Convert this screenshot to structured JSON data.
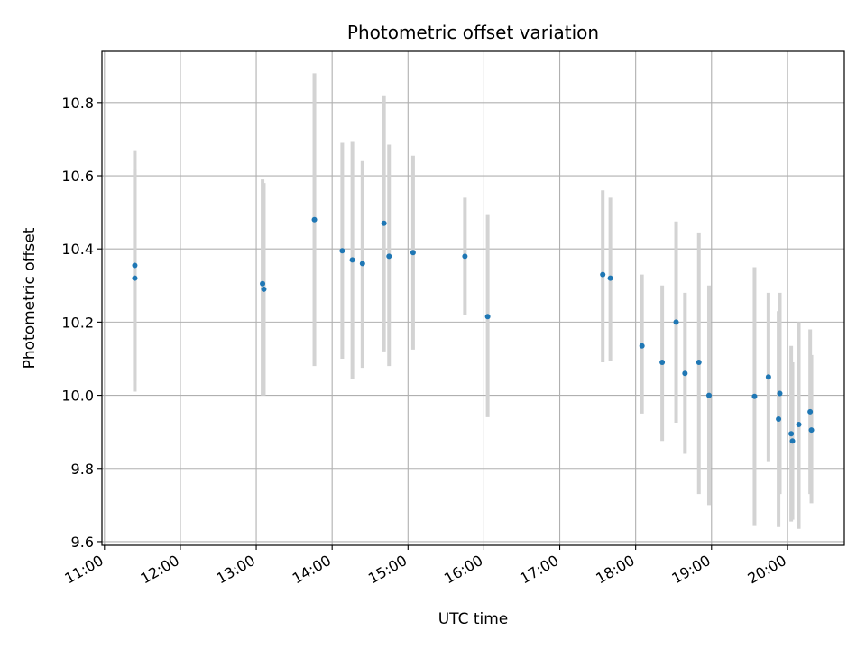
{
  "chart_data": {
    "type": "scatter",
    "title": "Photometric offset variation",
    "xlabel": "UTC time",
    "ylabel": "Photometric offset",
    "xlim": [
      "10:58",
      "20:45"
    ],
    "ylim": [
      9.59,
      10.94
    ],
    "grid": true,
    "x_ticks": [
      "11:00",
      "12:00",
      "13:00",
      "14:00",
      "15:00",
      "16:00",
      "17:00",
      "18:00",
      "19:00",
      "20:00"
    ],
    "y_ticks": [
      9.6,
      9.8,
      10.0,
      10.2,
      10.4,
      10.6,
      10.8
    ],
    "y_tick_labels": [
      "9.6",
      "9.8",
      "10.0",
      "10.2",
      "10.4",
      "10.6",
      "10.8"
    ],
    "colors": {
      "point": "#1f77b4",
      "errorbar": "#d3d3d3",
      "grid": "#b0b0b0"
    },
    "points": [
      {
        "x": "11:24",
        "y": 10.355,
        "yerr_low": 10.04,
        "yerr_high": 10.67
      },
      {
        "x": "11:24",
        "y": 10.32,
        "yerr_low": 10.01,
        "yerr_high": 10.62
      },
      {
        "x": "13:05",
        "y": 10.305,
        "yerr_low": 10.0,
        "yerr_high": 10.59
      },
      {
        "x": "13:06",
        "y": 10.29,
        "yerr_low": 10.0,
        "yerr_high": 10.58
      },
      {
        "x": "13:46",
        "y": 10.48,
        "yerr_low": 10.08,
        "yerr_high": 10.88
      },
      {
        "x": "14:08",
        "y": 10.395,
        "yerr_low": 10.1,
        "yerr_high": 10.69
      },
      {
        "x": "14:16",
        "y": 10.37,
        "yerr_low": 10.045,
        "yerr_high": 10.695
      },
      {
        "x": "14:24",
        "y": 10.36,
        "yerr_low": 10.075,
        "yerr_high": 10.64
      },
      {
        "x": "14:41",
        "y": 10.47,
        "yerr_low": 10.12,
        "yerr_high": 10.82
      },
      {
        "x": "14:45",
        "y": 10.38,
        "yerr_low": 10.08,
        "yerr_high": 10.685
      },
      {
        "x": "15:04",
        "y": 10.39,
        "yerr_low": 10.125,
        "yerr_high": 10.655
      },
      {
        "x": "15:45",
        "y": 10.38,
        "yerr_low": 10.22,
        "yerr_high": 10.54
      },
      {
        "x": "16:03",
        "y": 10.215,
        "yerr_low": 9.94,
        "yerr_high": 10.495
      },
      {
        "x": "17:34",
        "y": 10.33,
        "yerr_low": 10.09,
        "yerr_high": 10.56
      },
      {
        "x": "17:40",
        "y": 10.32,
        "yerr_low": 10.095,
        "yerr_high": 10.54
      },
      {
        "x": "18:05",
        "y": 10.135,
        "yerr_low": 9.95,
        "yerr_high": 10.33
      },
      {
        "x": "18:21",
        "y": 10.09,
        "yerr_low": 9.875,
        "yerr_high": 10.3
      },
      {
        "x": "18:32",
        "y": 10.2,
        "yerr_low": 9.925,
        "yerr_high": 10.475
      },
      {
        "x": "18:39",
        "y": 10.06,
        "yerr_low": 9.84,
        "yerr_high": 10.28
      },
      {
        "x": "18:50",
        "y": 10.09,
        "yerr_low": 9.73,
        "yerr_high": 10.445
      },
      {
        "x": "18:58",
        "y": 10.0,
        "yerr_low": 9.7,
        "yerr_high": 10.3
      },
      {
        "x": "19:34",
        "y": 9.997,
        "yerr_low": 9.645,
        "yerr_high": 10.35
      },
      {
        "x": "19:45",
        "y": 10.05,
        "yerr_low": 9.82,
        "yerr_high": 10.28
      },
      {
        "x": "19:53",
        "y": 9.935,
        "yerr_low": 9.64,
        "yerr_high": 10.23
      },
      {
        "x": "19:54",
        "y": 10.005,
        "yerr_low": 9.73,
        "yerr_high": 10.28
      },
      {
        "x": "20:03",
        "y": 9.895,
        "yerr_low": 9.655,
        "yerr_high": 10.135
      },
      {
        "x": "20:04",
        "y": 9.875,
        "yerr_low": 9.66,
        "yerr_high": 10.09
      },
      {
        "x": "20:09",
        "y": 9.92,
        "yerr_low": 9.635,
        "yerr_high": 10.2
      },
      {
        "x": "20:18",
        "y": 9.955,
        "yerr_low": 9.73,
        "yerr_high": 10.18
      },
      {
        "x": "20:19",
        "y": 9.905,
        "yerr_low": 9.705,
        "yerr_high": 10.11
      }
    ]
  }
}
